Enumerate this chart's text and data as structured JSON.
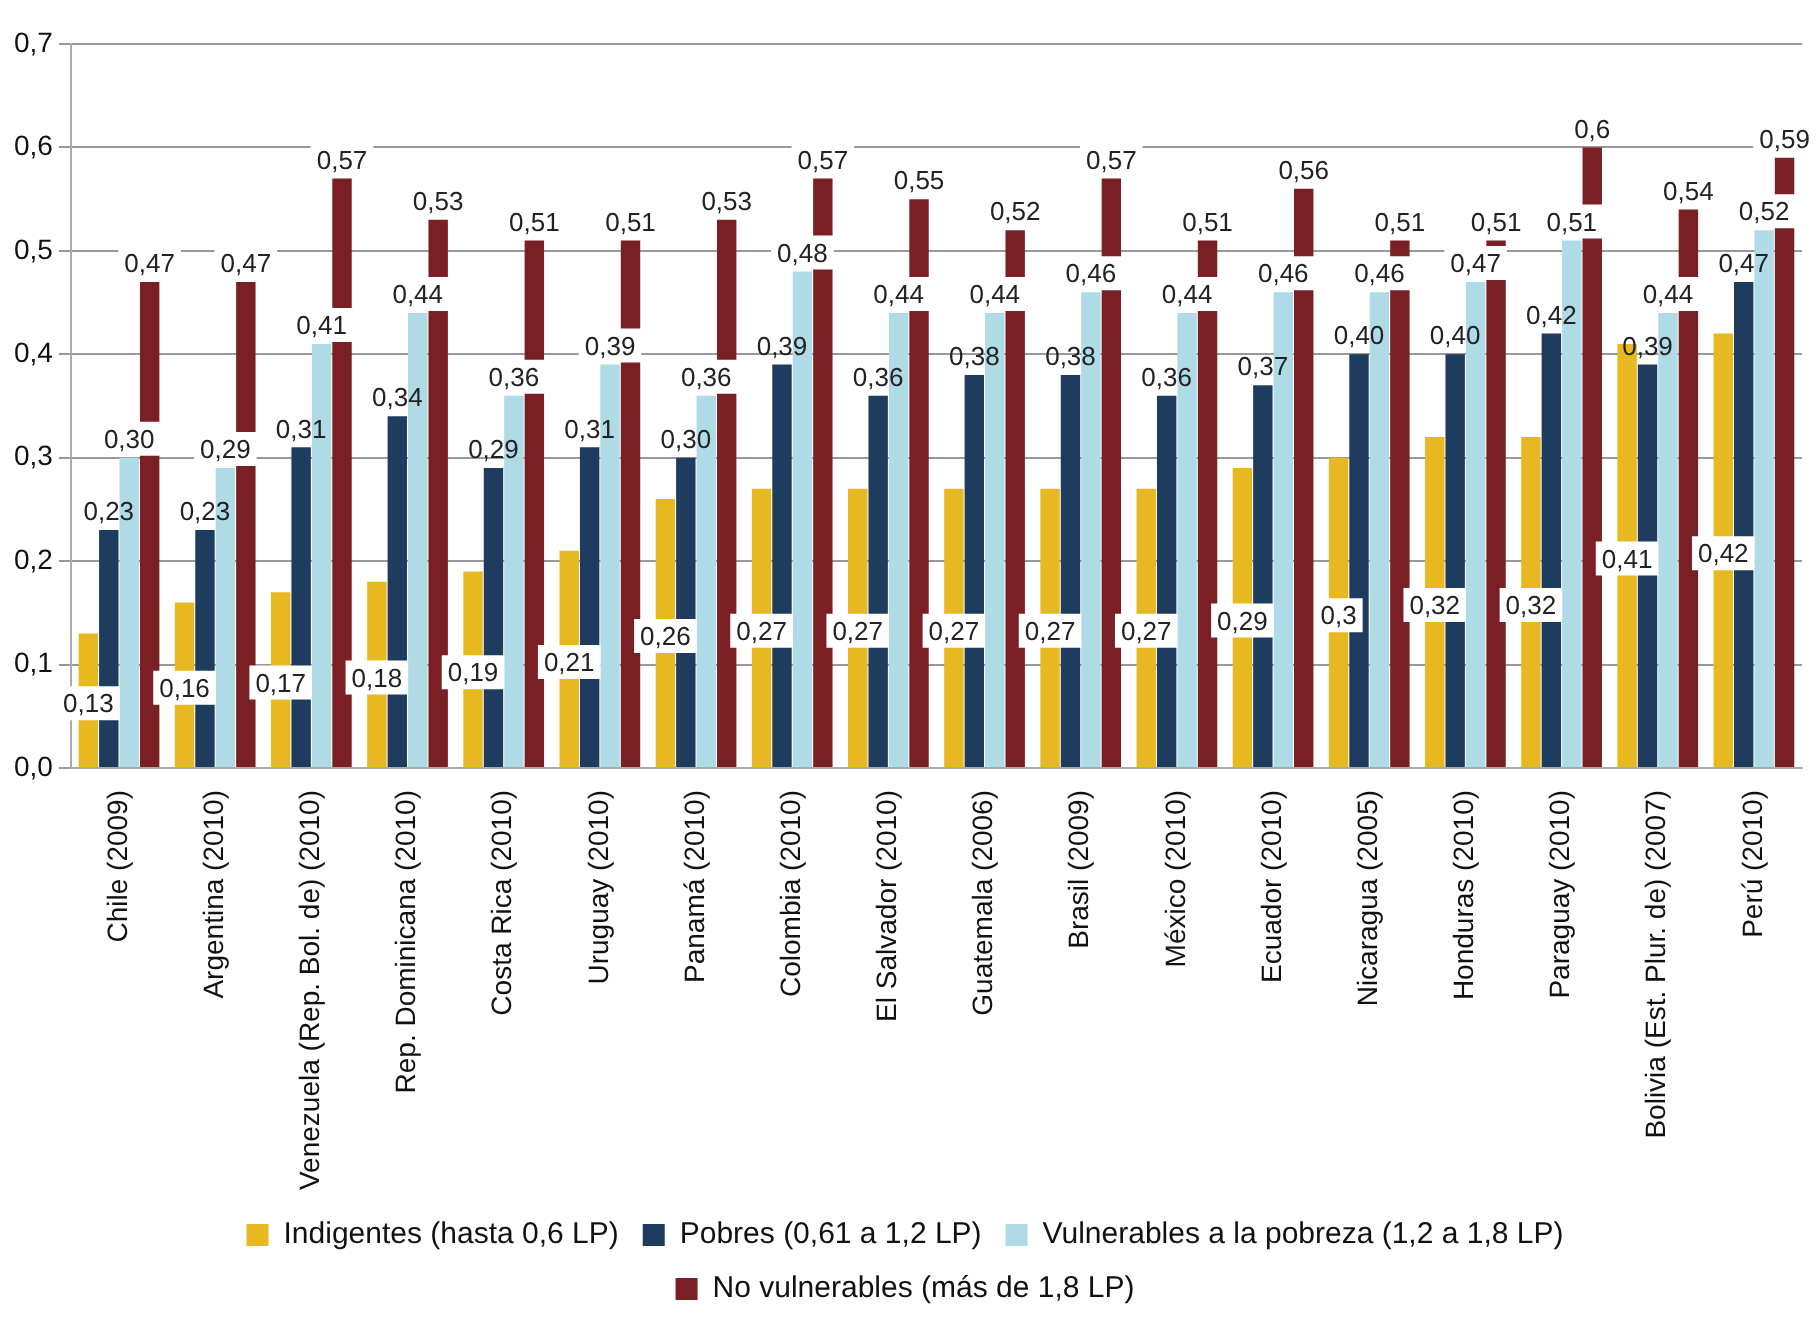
{
  "chart_data": {
    "type": "bar",
    "categories": [
      "Chile (2009)",
      "Argentina (2010)",
      "Venezuela (Rep. Bol. de) (2010)",
      "Rep. Dominicana (2010)",
      "Costa Rica (2010)",
      "Uruguay (2010)",
      "Panamá (2010)",
      "Colombia (2010)",
      "El Salvador (2010)",
      "Guatemala (2006)",
      "Brasil (2009)",
      "México (2010)",
      "Ecuador (2010)",
      "Nicaragua (2005)",
      "Honduras (2010)",
      "Paraguay (2010)",
      "Bolivia (Est. Plur. de) (2007)",
      "Perú (2010)"
    ],
    "series": [
      {
        "name": "Indigentes (hasta 0,6 LP)",
        "color": "#e8b820",
        "values": [
          0.13,
          0.16,
          0.17,
          0.18,
          0.19,
          0.21,
          0.26,
          0.27,
          0.27,
          0.27,
          0.27,
          0.27,
          0.29,
          0.3,
          0.32,
          0.32,
          0.41,
          0.42
        ],
        "value_labels": [
          "0,13",
          "0,16",
          "0,17",
          "0,18",
          "0,19",
          "0,21",
          "0,26",
          "0,27",
          "0,27",
          "0,27",
          "0,27",
          "0,27",
          "0,29",
          "0,3",
          "0,32",
          "0,32",
          "0,41",
          "0,42"
        ]
      },
      {
        "name": "Pobres (0,61 a 1,2 LP)",
        "color": "#1d3c5e",
        "values": [
          0.23,
          0.23,
          0.31,
          0.34,
          0.29,
          0.31,
          0.3,
          0.39,
          0.36,
          0.38,
          0.38,
          0.36,
          0.37,
          0.4,
          0.4,
          0.42,
          0.39,
          0.47
        ],
        "value_labels": [
          "0,23",
          "0,23",
          "0,31",
          "0,34",
          "0,29",
          "0,31",
          "0,30",
          "0,39",
          "0,36",
          "0,38",
          "0,38",
          "0,36",
          "0,37",
          "0,40",
          "0,40",
          "0,42",
          "0,39",
          "0,47"
        ]
      },
      {
        "name": "Vulnerables a la pobreza (1,2 a 1,8 LP)",
        "color": "#aedbe6",
        "values": [
          0.3,
          0.29,
          0.41,
          0.44,
          0.36,
          0.39,
          0.36,
          0.48,
          0.44,
          0.44,
          0.46,
          0.44,
          0.46,
          0.46,
          0.47,
          0.51,
          0.44,
          0.52
        ],
        "value_labels": [
          "0,30",
          "0,29",
          "0,41",
          "0,44",
          "0,36",
          "0,39",
          "0,36",
          "0,48",
          "0,44",
          "0,44",
          "0,46",
          "0,44",
          "0,46",
          "0,46",
          "0,47",
          "0,51",
          "0,44",
          "0,52"
        ]
      },
      {
        "name": "No vulnerables (más de 1,8 LP)",
        "color": "#7a1f24",
        "values": [
          0.47,
          0.47,
          0.57,
          0.53,
          0.51,
          0.51,
          0.53,
          0.57,
          0.55,
          0.52,
          0.57,
          0.51,
          0.56,
          0.51,
          0.51,
          0.6,
          0.54,
          0.59
        ],
        "value_labels": [
          "0,47",
          "0,47",
          "0,57",
          "0,53",
          "0,51",
          "0,51",
          "0,53",
          "0,57",
          "0,55",
          "0,52",
          "0,57",
          "0,51",
          "0,56",
          "0,51",
          "0,51",
          "0,6",
          "0,54",
          "0,59"
        ]
      }
    ],
    "ylim": [
      0,
      0.7
    ],
    "yticks": [
      {
        "value": 0,
        "label": "0,0"
      },
      {
        "value": 0.1,
        "label": "0,1"
      },
      {
        "value": 0.2,
        "label": "0,2"
      },
      {
        "value": 0.3,
        "label": "0,3"
      },
      {
        "value": 0.4,
        "label": "0,4"
      },
      {
        "value": 0.5,
        "label": "0,5"
      },
      {
        "value": 0.6,
        "label": "0,6"
      },
      {
        "value": 0.7,
        "label": "0,7"
      }
    ],
    "grid": "y",
    "legend": "bottom"
  }
}
